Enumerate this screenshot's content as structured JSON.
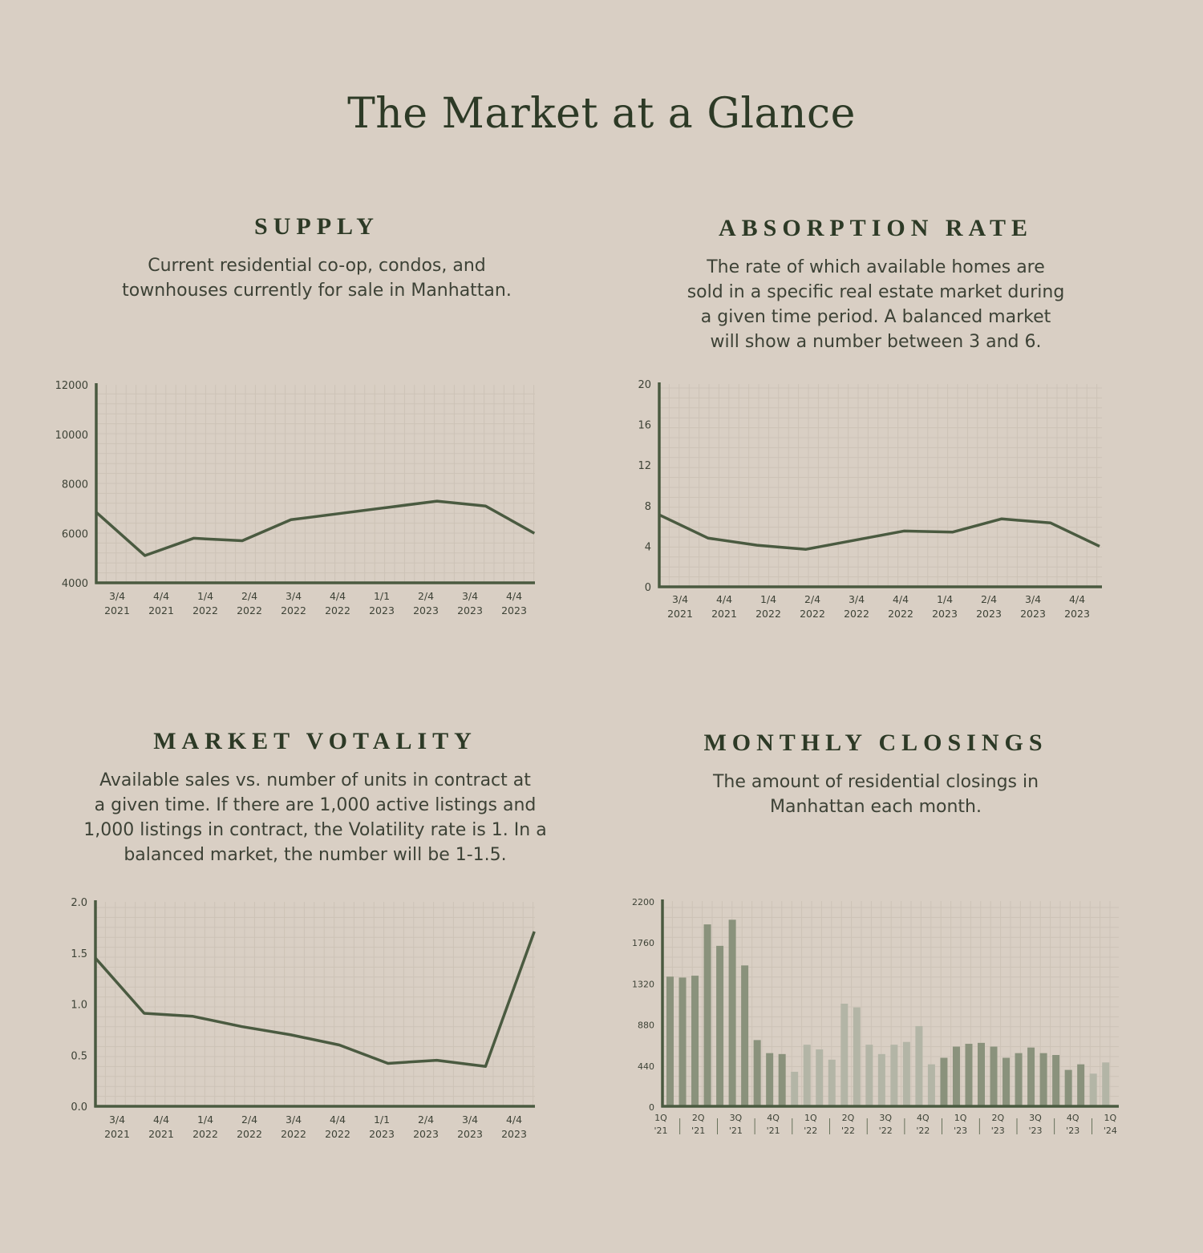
{
  "page": {
    "title": "The Market at a Glance"
  },
  "colors": {
    "background": "#d9cfc4",
    "line": "#4a5a40",
    "grid": "#cdc3b7",
    "bar_dark": "#8a927c",
    "bar_light": "#b3b5a6"
  },
  "sections": {
    "supply": {
      "title": "SUPPLY",
      "description": "Current residential co-op, condos, and\ntownhouses currently for sale in Manhattan."
    },
    "absorption": {
      "title": "ABSORPTION RATE",
      "description": "The rate of which available homes are\nsold in a specific real estate market during\na given time period. A balanced market\nwill show a number between 3 and 6."
    },
    "volatility": {
      "title": "MARKET VOTALITY",
      "description": "Available sales vs. number of units in contract at\na given time. If there are 1,000 active listings and\n1,000 listings in contract, the Volatility rate is 1. In a\nbalanced market, the number will be 1-1.5."
    },
    "closings": {
      "title": "MONTHLY CLOSINGS",
      "description": "The amount of residential closings in\nManhattan each month."
    }
  },
  "chart_data": [
    {
      "id": "supply",
      "type": "line",
      "categories": [
        [
          "3/4",
          "2021"
        ],
        [
          "4/4",
          "2021"
        ],
        [
          "1/4",
          "2022"
        ],
        [
          "2/4",
          "2022"
        ],
        [
          "3/4",
          "2022"
        ],
        [
          "4/4",
          "2022"
        ],
        [
          "1/1",
          "2023"
        ],
        [
          "2/4",
          "2023"
        ],
        [
          "3/4",
          "2023"
        ],
        [
          "4/4",
          "2023"
        ]
      ],
      "values": [
        6850,
        5100,
        5800,
        5700,
        6550,
        6800,
        7050,
        7300,
        7100,
        6000
      ],
      "ylim": [
        4000,
        12000
      ],
      "yticks": [
        "12000",
        "10000",
        "8000",
        "6000",
        "4000"
      ],
      "grid": true
    },
    {
      "id": "absorption",
      "type": "line",
      "categories": [
        [
          "3/4",
          "2021"
        ],
        [
          "4/4",
          "2021"
        ],
        [
          "1/4",
          "2022"
        ],
        [
          "2/4",
          "2022"
        ],
        [
          "3/4",
          "2022"
        ],
        [
          "4/4",
          "2022"
        ],
        [
          "1/4",
          "2023"
        ],
        [
          "2/4",
          "2023"
        ],
        [
          "3/4",
          "2023"
        ],
        [
          "4/4",
          "2023"
        ]
      ],
      "values": [
        7.1,
        4.8,
        4.1,
        3.7,
        4.6,
        5.5,
        5.4,
        6.7,
        6.3,
        4.0
      ],
      "ylim": [
        0,
        20
      ],
      "yticks": [
        "20",
        "16",
        "12",
        "8",
        "4",
        "0"
      ],
      "grid": true
    },
    {
      "id": "volatility",
      "type": "line",
      "categories": [
        [
          "3/4",
          "2021"
        ],
        [
          "4/4",
          "2021"
        ],
        [
          "1/4",
          "2022"
        ],
        [
          "2/4",
          "2022"
        ],
        [
          "3/4",
          "2022"
        ],
        [
          "4/4",
          "2022"
        ],
        [
          "1/1",
          "2023"
        ],
        [
          "2/4",
          "2023"
        ],
        [
          "3/4",
          "2023"
        ],
        [
          "4/4",
          "2023"
        ]
      ],
      "values": [
        1.45,
        0.91,
        0.88,
        0.78,
        0.7,
        0.6,
        0.42,
        0.45,
        0.39,
        1.71
      ],
      "ylim": [
        0,
        2.0
      ],
      "yticks": [
        "2.0",
        "1.5",
        "1.0",
        "0.5",
        "0.0"
      ],
      "grid": true
    },
    {
      "id": "closings",
      "type": "bar",
      "x_labels": [
        [
          "1Q",
          "'21"
        ],
        [
          "2Q",
          "'21"
        ],
        [
          "3Q",
          "'21"
        ],
        [
          "4Q",
          "'21"
        ],
        [
          "1Q",
          "'22"
        ],
        [
          "2Q",
          "'22"
        ],
        [
          "3Q",
          "'22"
        ],
        [
          "4Q",
          "'22"
        ],
        [
          "1Q",
          "'23"
        ],
        [
          "2Q",
          "'23"
        ],
        [
          "3Q",
          "'23"
        ],
        [
          "4Q",
          "'23"
        ],
        [
          "1Q",
          "'24"
        ]
      ],
      "values": [
        1390,
        1380,
        1400,
        1950,
        1720,
        2000,
        1510,
        710,
        570,
        560,
        370,
        660,
        610,
        500,
        1100,
        1060,
        660,
        560,
        660,
        690,
        860,
        450,
        520,
        640,
        670,
        680,
        640,
        520,
        570,
        630,
        570,
        550,
        390,
        450,
        350,
        470
      ],
      "shade": [
        "dark",
        "dark",
        "dark",
        "dark",
        "dark",
        "dark",
        "dark",
        "dark",
        "dark",
        "dark",
        "light",
        "light",
        "light",
        "light",
        "light",
        "light",
        "light",
        "light",
        "light",
        "light",
        "light",
        "light",
        "dark",
        "dark",
        "dark",
        "dark",
        "dark",
        "dark",
        "dark",
        "dark",
        "dark",
        "dark",
        "dark",
        "dark",
        "light",
        "light"
      ],
      "ylim": [
        0,
        2200
      ],
      "yticks": [
        "2200",
        "1760",
        "1320",
        "880",
        "440",
        "0"
      ],
      "grid": true
    }
  ]
}
